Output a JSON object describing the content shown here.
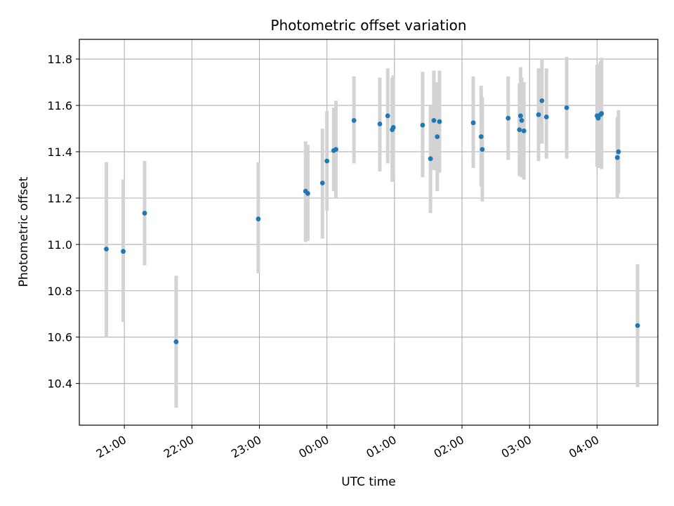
{
  "chart_data": {
    "type": "scatter",
    "title": "Photometric offset variation",
    "xlabel": "UTC time",
    "ylabel": "Photometric offset",
    "x_is_time": true,
    "xlim": [
      "20:20",
      "04:54"
    ],
    "ylim": [
      10.22,
      11.885
    ],
    "grid": true,
    "x_ticks": [
      "21:00",
      "22:00",
      "23:00",
      "00:00",
      "01:00",
      "02:00",
      "03:00",
      "04:00"
    ],
    "y_ticks": [
      10.4,
      10.6,
      10.8,
      11.0,
      11.2,
      11.4,
      11.6,
      11.8
    ],
    "y_tick_labels": [
      "10.4",
      "10.6",
      "10.8",
      "11.0",
      "11.2",
      "11.4",
      "11.6",
      "11.8"
    ],
    "marker_color": "#1f77b4",
    "errorbar_color": "#d3d3d3",
    "points": [
      {
        "t": "20:44",
        "y": 10.98,
        "lo": 10.6,
        "hi": 11.355
      },
      {
        "t": "20:59",
        "y": 10.97,
        "lo": 10.665,
        "hi": 11.28
      },
      {
        "t": "21:18",
        "y": 11.135,
        "lo": 10.91,
        "hi": 11.36
      },
      {
        "t": "21:46",
        "y": 10.58,
        "lo": 10.295,
        "hi": 10.865
      },
      {
        "t": "22:59",
        "y": 11.11,
        "lo": 10.875,
        "hi": 11.355
      },
      {
        "t": "23:41",
        "y": 11.23,
        "lo": 11.01,
        "hi": 11.445
      },
      {
        "t": "23:43",
        "y": 11.22,
        "lo": 11.015,
        "hi": 11.43
      },
      {
        "t": "23:56",
        "y": 11.265,
        "lo": 11.025,
        "hi": 11.5
      },
      {
        "t": "00:00",
        "y": 11.36,
        "lo": 11.145,
        "hi": 11.575
      },
      {
        "t": "00:06",
        "y": 11.405,
        "lo": 11.23,
        "hi": 11.59
      },
      {
        "t": "00:08",
        "y": 11.41,
        "lo": 11.2,
        "hi": 11.62
      },
      {
        "t": "00:24",
        "y": 11.535,
        "lo": 11.35,
        "hi": 11.725
      },
      {
        "t": "00:47",
        "y": 11.52,
        "lo": 11.315,
        "hi": 11.72
      },
      {
        "t": "00:54",
        "y": 11.555,
        "lo": 11.35,
        "hi": 11.76
      },
      {
        "t": "00:58",
        "y": 11.495,
        "lo": 11.27,
        "hi": 11.72
      },
      {
        "t": "00:59",
        "y": 11.505,
        "lo": 11.28,
        "hi": 11.73
      },
      {
        "t": "01:25",
        "y": 11.515,
        "lo": 11.29,
        "hi": 11.745
      },
      {
        "t": "01:32",
        "y": 11.37,
        "lo": 11.135,
        "hi": 11.6
      },
      {
        "t": "01:35",
        "y": 11.535,
        "lo": 11.32,
        "hi": 11.75
      },
      {
        "t": "01:38",
        "y": 11.465,
        "lo": 11.23,
        "hi": 11.7
      },
      {
        "t": "01:40",
        "y": 11.53,
        "lo": 11.31,
        "hi": 11.75
      },
      {
        "t": "02:10",
        "y": 11.525,
        "lo": 11.33,
        "hi": 11.725
      },
      {
        "t": "02:17",
        "y": 11.465,
        "lo": 11.25,
        "hi": 11.685
      },
      {
        "t": "02:18",
        "y": 11.41,
        "lo": 11.185,
        "hi": 11.635
      },
      {
        "t": "02:41",
        "y": 11.545,
        "lo": 11.365,
        "hi": 11.725
      },
      {
        "t": "02:51",
        "y": 11.495,
        "lo": 11.295,
        "hi": 11.695
      },
      {
        "t": "02:52",
        "y": 11.555,
        "lo": 11.345,
        "hi": 11.765
      },
      {
        "t": "02:53",
        "y": 11.535,
        "lo": 11.29,
        "hi": 11.72
      },
      {
        "t": "02:55",
        "y": 11.49,
        "lo": 11.28,
        "hi": 11.7
      },
      {
        "t": "03:08",
        "y": 11.56,
        "lo": 11.36,
        "hi": 11.76
      },
      {
        "t": "03:11",
        "y": 11.62,
        "lo": 11.435,
        "hi": 11.8
      },
      {
        "t": "03:15",
        "y": 11.55,
        "lo": 11.37,
        "hi": 11.76
      },
      {
        "t": "03:33",
        "y": 11.59,
        "lo": 11.37,
        "hi": 11.81
      },
      {
        "t": "04:00",
        "y": 11.555,
        "lo": 11.335,
        "hi": 11.775
      },
      {
        "t": "04:01",
        "y": 11.545,
        "lo": 11.33,
        "hi": 11.78
      },
      {
        "t": "04:03",
        "y": 11.56,
        "lo": 11.33,
        "hi": 11.79
      },
      {
        "t": "04:04",
        "y": 11.565,
        "lo": 11.325,
        "hi": 11.805
      },
      {
        "t": "04:18",
        "y": 11.375,
        "lo": 11.2,
        "hi": 11.55
      },
      {
        "t": "04:19",
        "y": 11.4,
        "lo": 11.22,
        "hi": 11.58
      },
      {
        "t": "04:36",
        "y": 10.65,
        "lo": 10.385,
        "hi": 10.915
      }
    ]
  }
}
